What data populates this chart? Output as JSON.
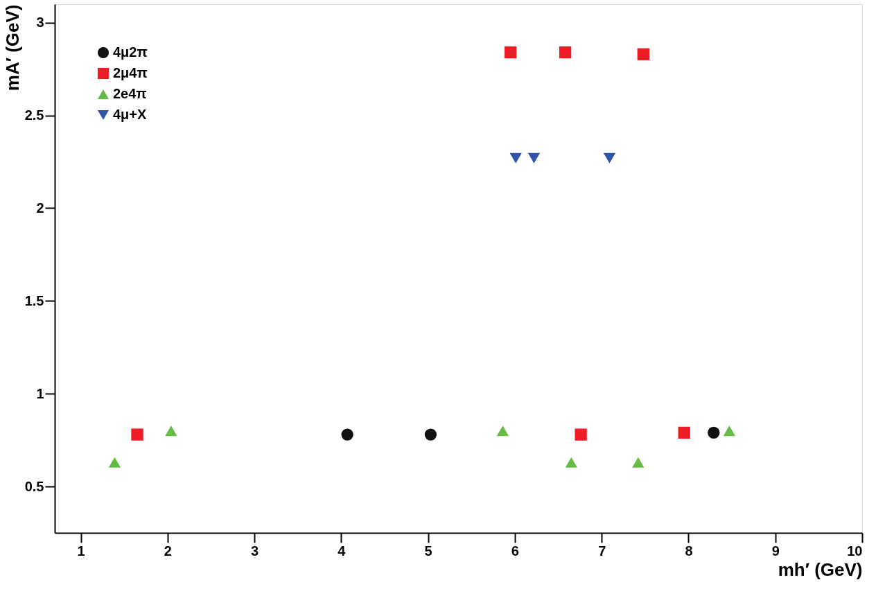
{
  "chart_data": {
    "type": "scatter",
    "xlabel": "mh′ (GeV)",
    "ylabel": "mA′ (GeV)",
    "xlim": [
      0.7,
      10
    ],
    "ylim": [
      0.25,
      3.1
    ],
    "xticks": [
      1,
      2,
      3,
      4,
      5,
      6,
      7,
      8,
      9,
      10
    ],
    "yticks": [
      0.5,
      1,
      1.5,
      2,
      2.5,
      3
    ],
    "grid": false,
    "legend": "top left",
    "series": [
      {
        "name": "4μ2π",
        "color": "#111111",
        "marker": "circle",
        "x": [
          4.07,
          5.03,
          8.29
        ],
        "values": [
          0.78,
          0.78,
          0.79
        ]
      },
      {
        "name": "2μ4π",
        "color": "#ee1c25",
        "marker": "square",
        "x": [
          1.65,
          5.95,
          6.58,
          6.76,
          7.48,
          7.95
        ],
        "values": [
          0.78,
          2.84,
          2.84,
          0.78,
          2.83,
          0.79
        ]
      },
      {
        "name": "2e4π",
        "color": "#66bb44",
        "marker": "triangle",
        "x": [
          1.39,
          2.04,
          5.86,
          6.65,
          7.42,
          8.47
        ],
        "values": [
          0.63,
          0.8,
          0.8,
          0.63,
          0.63,
          0.8
        ]
      },
      {
        "name": "4μ+X",
        "color": "#2e55a8",
        "marker": "triangle-down",
        "x": [
          6.01,
          6.22,
          7.09
        ],
        "values": [
          2.27,
          2.27,
          2.27
        ]
      }
    ]
  }
}
